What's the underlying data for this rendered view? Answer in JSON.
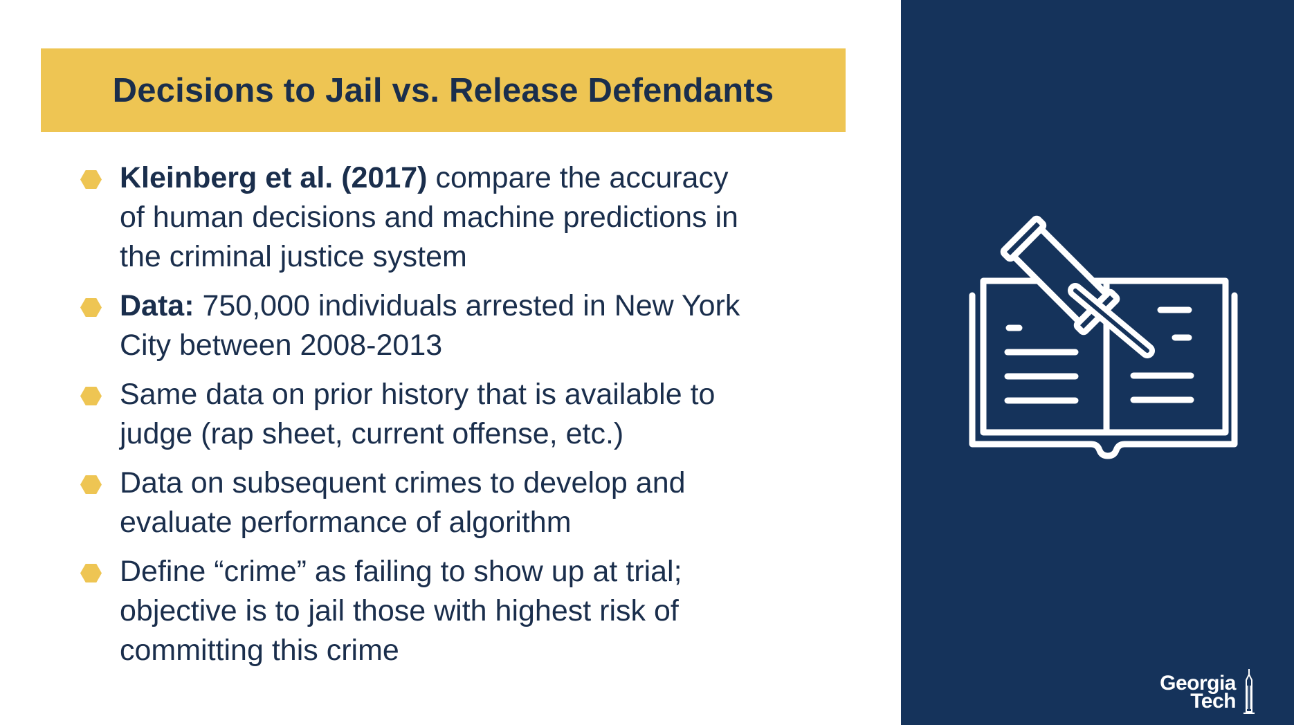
{
  "title": "Decisions to Jail vs. Release Defendants",
  "bullets": [
    {
      "lines": [
        {
          "bold": "Kleinberg et al. (2017)",
          "text": " compare the accuracy"
        },
        {
          "bold": "",
          "text": "of human decisions and machine predictions in"
        },
        {
          "bold": "",
          "text": "the criminal justice system"
        }
      ]
    },
    {
      "lines": [
        {
          "bold": "Data:",
          "text": " 750,000 individuals arrested in New York"
        },
        {
          "bold": "",
          "text": "City between 2008-2013"
        }
      ]
    },
    {
      "lines": [
        {
          "bold": "",
          "text": "Same data on prior history that is available to"
        },
        {
          "bold": "",
          "text": "judge (rap sheet, current offense, etc.)"
        }
      ]
    },
    {
      "lines": [
        {
          "bold": "",
          "text": "Data on subsequent crimes to develop and"
        },
        {
          "bold": "",
          "text": "evaluate performance of algorithm"
        }
      ]
    },
    {
      "lines": [
        {
          "bold": "",
          "text": "Define “crime” as failing to show up at trial;"
        },
        {
          "bold": "",
          "text": "objective is to jail those with highest risk of"
        },
        {
          "bold": "",
          "text": "committing this crime"
        }
      ]
    }
  ],
  "illustration": {
    "icon": "gavel-on-open-book-icon"
  },
  "logo": {
    "line1": "Georgia",
    "line2": "Tech"
  },
  "colors": {
    "accent_gold": "#EEC553",
    "navy_panel": "#15335B",
    "text_navy": "#1A2E4C"
  }
}
